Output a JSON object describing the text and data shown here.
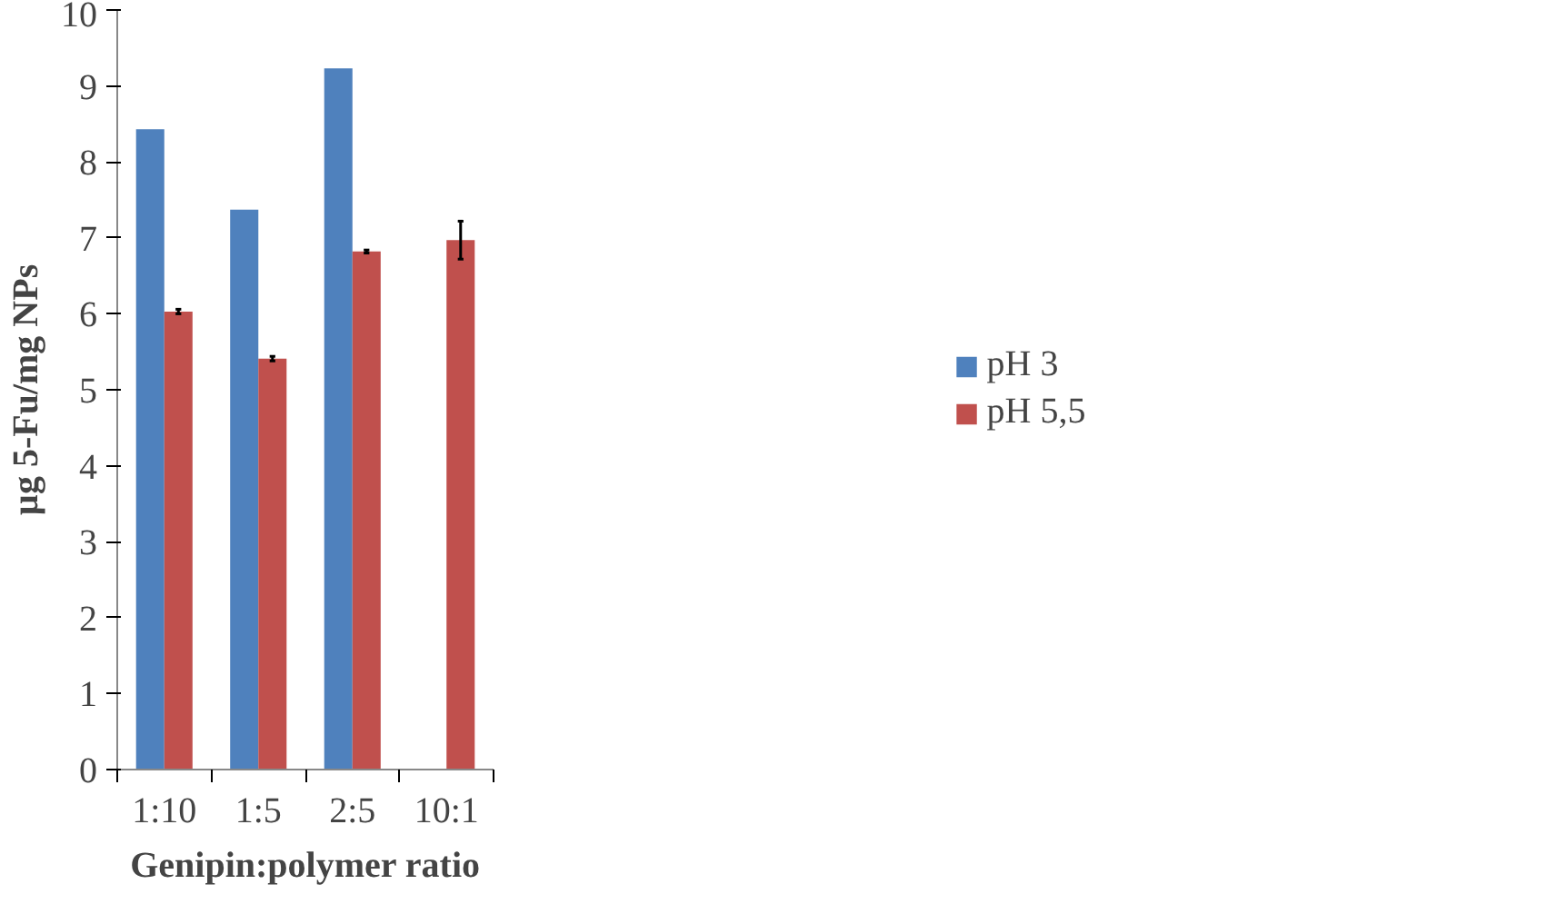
{
  "chart_data": {
    "type": "bar",
    "xlabel": "Genipin:polymer ratio",
    "ylabel": "µg 5-Fu/mg NPs",
    "categories": [
      "1:10",
      "1:5",
      "2:5",
      "10:1"
    ],
    "series": [
      {
        "name": "pH 3",
        "color": "#4f81bd",
        "values": [
          8.43,
          7.37,
          9.23,
          null
        ]
      },
      {
        "name": "pH 5,5",
        "color": "#c0504d",
        "values": [
          6.03,
          5.41,
          6.82,
          6.97
        ],
        "errors": [
          0.03,
          0.03,
          0.02,
          0.25
        ]
      }
    ],
    "ylim": [
      0,
      10
    ],
    "yticks": [
      0,
      1,
      2,
      3,
      4,
      5,
      6,
      7,
      8,
      9,
      10
    ],
    "grid": false,
    "legend": "right"
  }
}
